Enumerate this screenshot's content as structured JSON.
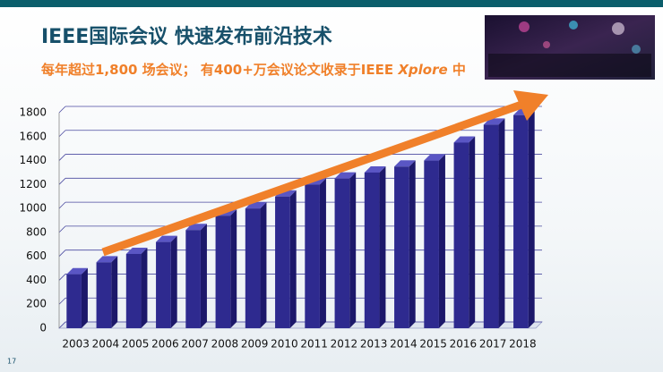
{
  "chart_data": {
    "type": "bar",
    "title": "IEEE国际会议 快速发布前沿技术",
    "subtitle": {
      "before": "每年超过1,800 场会议； 有400+万会议论文收录于IEEE ",
      "italic": "Xplore",
      "after": " 中"
    },
    "page_number": "17",
    "categories": [
      "2003",
      "2004",
      "2005",
      "2006",
      "2007",
      "2008",
      "2009",
      "2010",
      "2011",
      "2012",
      "2013",
      "2014",
      "2015",
      "2016",
      "2017",
      "2018"
    ],
    "values": [
      450,
      550,
      620,
      720,
      820,
      940,
      1000,
      1100,
      1200,
      1250,
      1300,
      1350,
      1400,
      1550,
      1700,
      1780
    ],
    "color": "#2e2a8f",
    "ylim": [
      0,
      1800
    ],
    "yticks": [
      0,
      200,
      400,
      600,
      800,
      1000,
      1200,
      1400,
      1600,
      1800
    ],
    "grid": true
  }
}
